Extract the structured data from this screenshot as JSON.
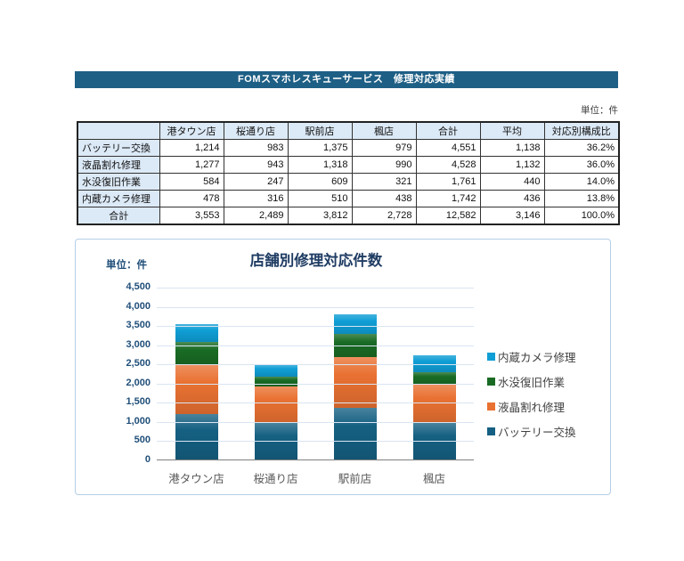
{
  "title_bar": {
    "text": "FOMスマホレスキューサービス　修理対応実績",
    "bg_color": "#1E5F85"
  },
  "table": {
    "unit_label": "単位：件",
    "header_bg": "#DCE9F6",
    "col_headers": [
      "",
      "港タウン店",
      "桜通り店",
      "駅前店",
      "楓店",
      "合計",
      "平均",
      "対応別構成比"
    ],
    "rows": [
      {
        "label": "バッテリー交換",
        "values": [
          "1,214",
          "983",
          "1,375",
          "979",
          "4,551",
          "1,138",
          "36.2%"
        ]
      },
      {
        "label": "液晶割れ修理",
        "values": [
          "1,277",
          "943",
          "1,318",
          "990",
          "4,528",
          "1,132",
          "36.0%"
        ]
      },
      {
        "label": "水没復旧作業",
        "values": [
          "584",
          "247",
          "609",
          "321",
          "1,761",
          "440",
          "14.0%"
        ]
      },
      {
        "label": "内蔵カメラ修理",
        "values": [
          "478",
          "316",
          "510",
          "438",
          "1,742",
          "436",
          "13.8%"
        ]
      },
      {
        "label": "合計",
        "values": [
          "3,553",
          "2,489",
          "3,812",
          "2,728",
          "12,582",
          "3,146",
          "100.0%"
        ]
      }
    ]
  },
  "chart_data": {
    "type": "bar",
    "stacked": true,
    "title": "店舗別修理対応件数",
    "unit_label": "単位：件",
    "categories": [
      "港タウン店",
      "桜通り店",
      "駅前店",
      "楓店"
    ],
    "series": [
      {
        "name": "バッテリー交換",
        "color": "#156082",
        "values": [
          1214,
          983,
          1375,
          979
        ]
      },
      {
        "name": "液晶割れ修理",
        "color": "#E97132",
        "values": [
          1277,
          943,
          1318,
          990
        ]
      },
      {
        "name": "水没復旧作業",
        "color": "#196B24",
        "values": [
          584,
          247,
          609,
          321
        ]
      },
      {
        "name": "内蔵カメラ修理",
        "color": "#0F9ED5",
        "values": [
          478,
          316,
          510,
          438
        ]
      }
    ],
    "totals": [
      3553,
      2489,
      3812,
      2728
    ],
    "ylim": [
      0,
      4500
    ],
    "ytick_step": 500,
    "yticks": [
      "4,500",
      "4,000",
      "3,500",
      "3,000",
      "2,500",
      "2,000",
      "1,500",
      "1,000",
      "500",
      "0"
    ],
    "grid": true,
    "legend_position": "right",
    "legend_reversed": true
  }
}
